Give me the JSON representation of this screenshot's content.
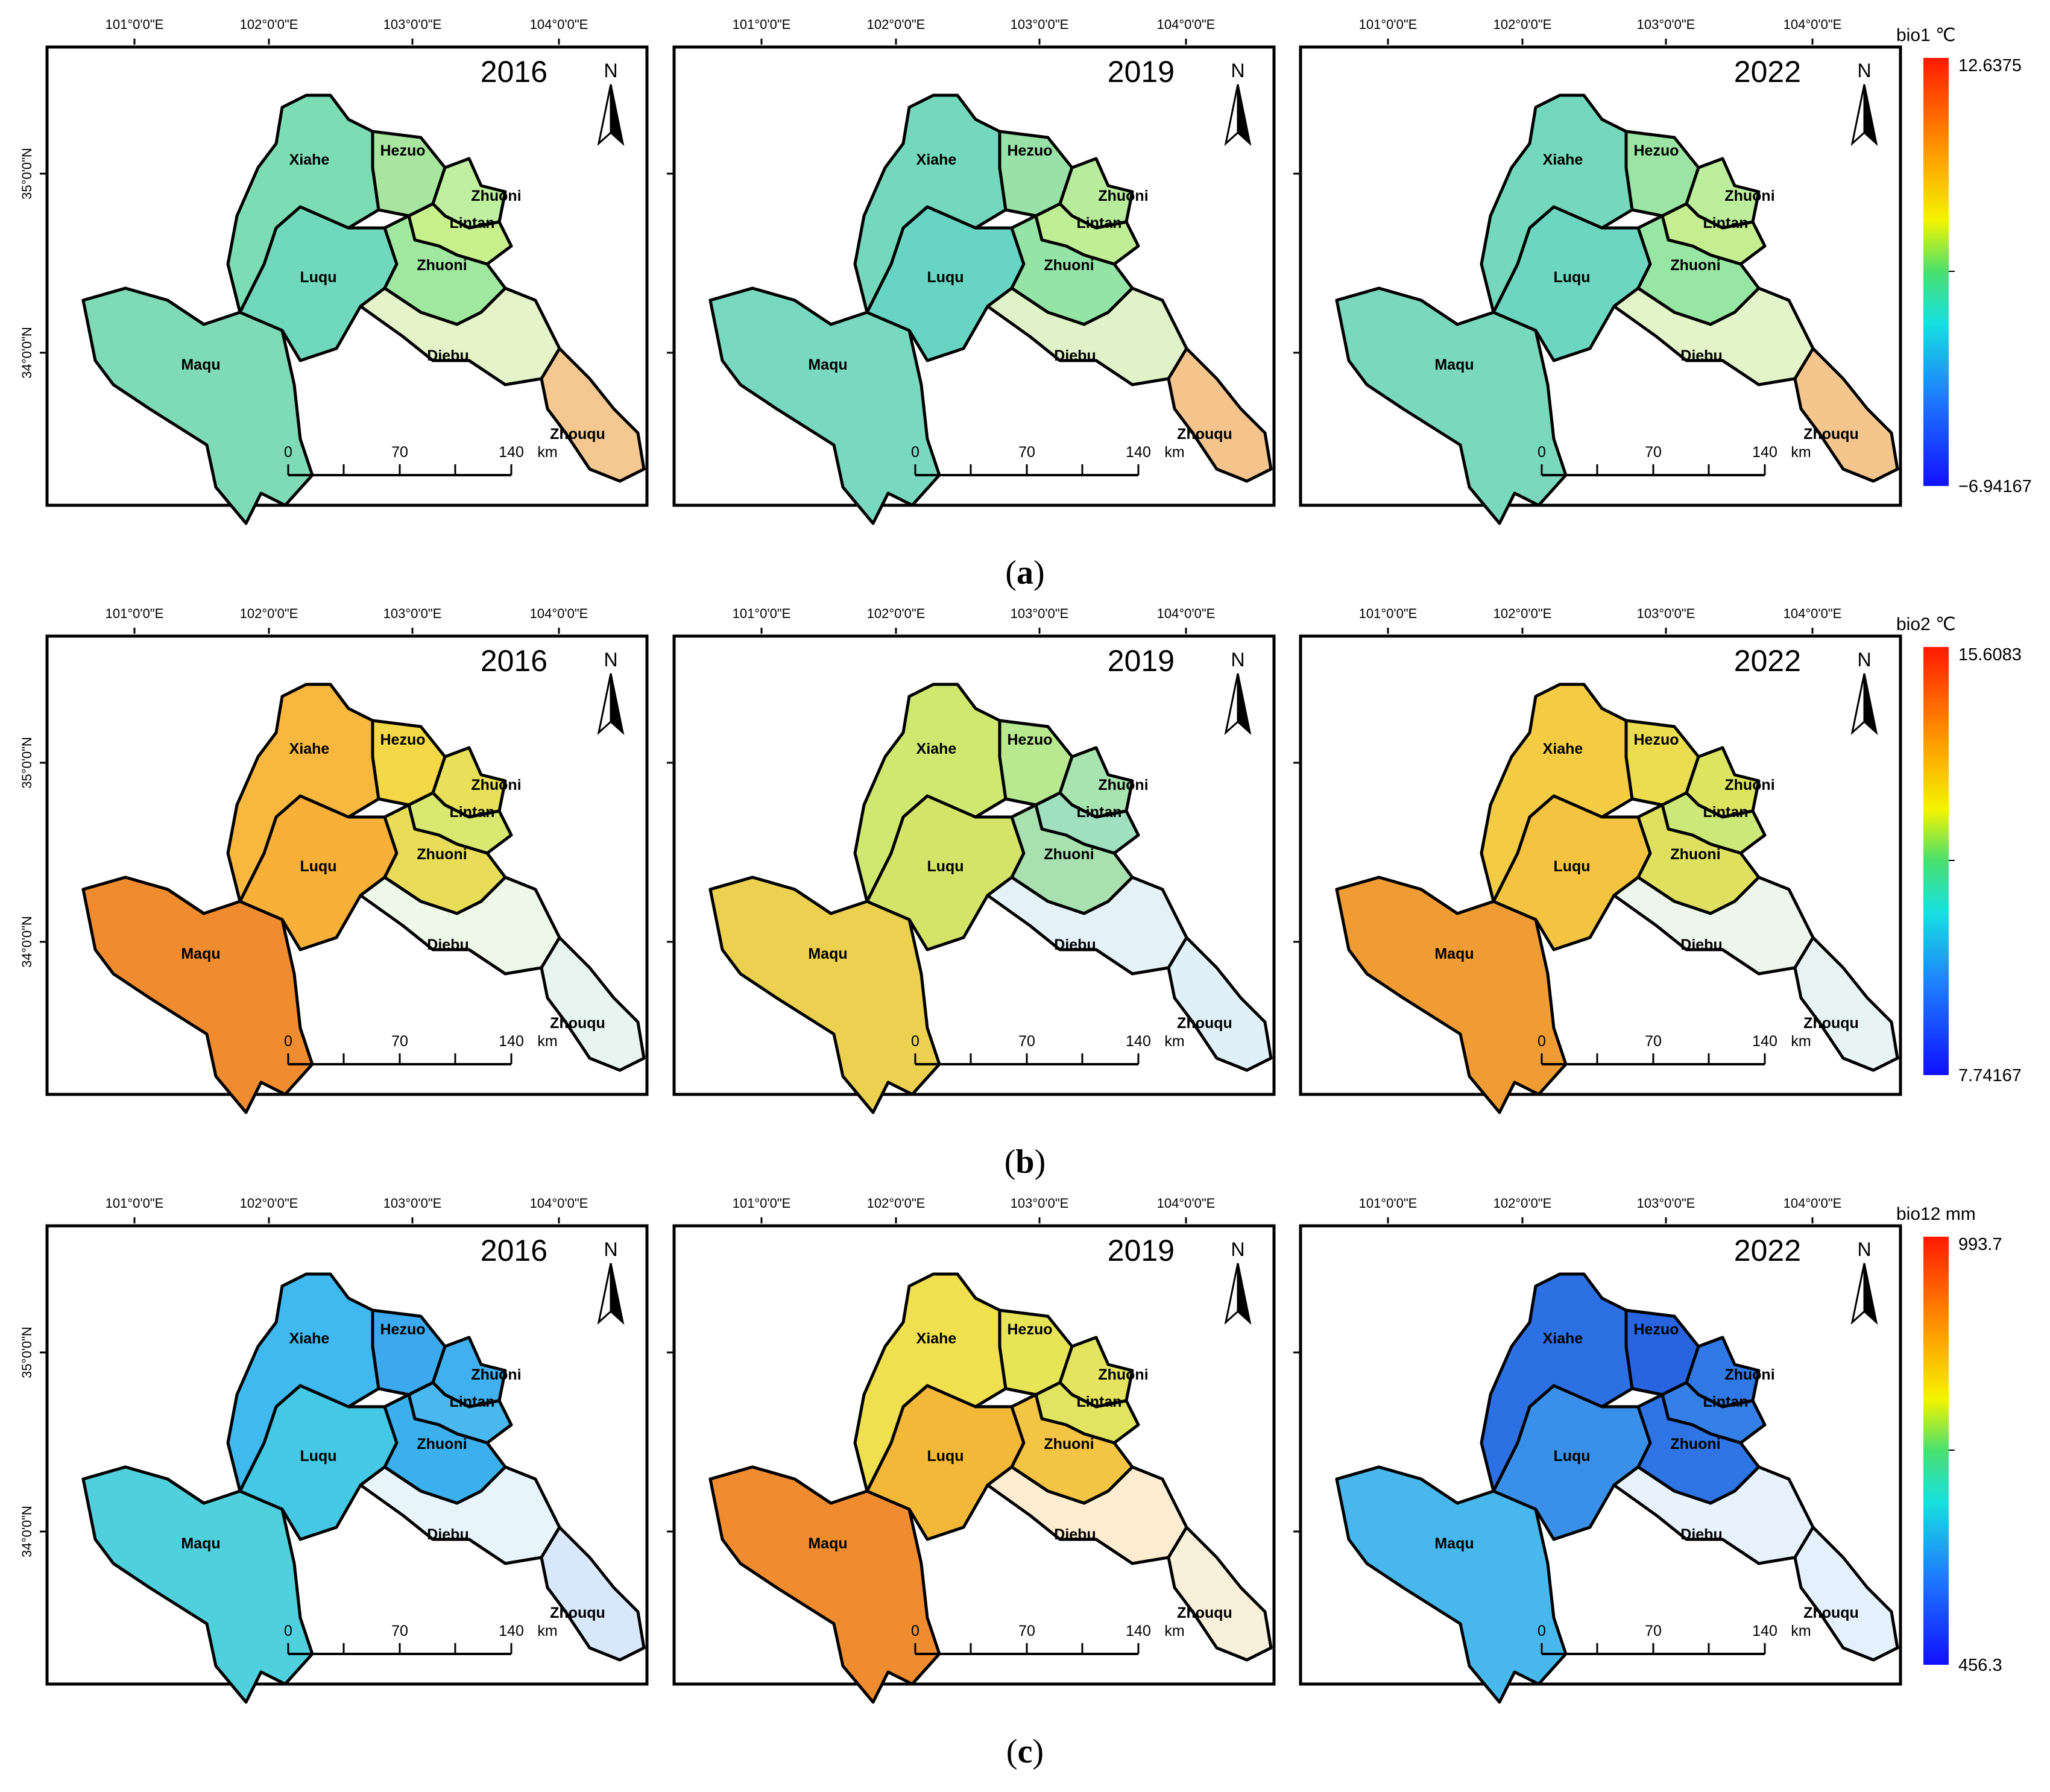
{
  "axes": {
    "x_ticks": [
      "101°0'0\"E",
      "102°0'0\"E",
      "103°0'0\"E",
      "104°0'0\"E"
    ],
    "y_ticks": [
      "35°0'0\"N",
      "34°0'0\"N"
    ]
  },
  "regions": [
    "Xiahe",
    "Hezuo",
    "Zhuoni",
    "Lintan",
    "Luqu",
    "Zhuoni",
    "Maqu",
    "Diebu",
    "Zhouqu"
  ],
  "north_arrow": {
    "label": "N",
    "icon": "north-arrow-icon"
  },
  "scale_bar": {
    "ticks": [
      "0",
      "70",
      "140"
    ],
    "unit": "km"
  },
  "rows": [
    {
      "caption_open": "(",
      "caption_letter": "a",
      "caption_close": ")",
      "variable": "bio1",
      "unit": "℃",
      "legend_max": "12.6375",
      "legend_min": "−6.94167",
      "panels": [
        {
          "year": "2016",
          "colors": {
            "Xiahe": "#7cdcb4",
            "Hezuo": "#a8e6a0",
            "Zhuoni": "#bff0a0",
            "Lintan": "#c8f08c",
            "Luqu": "#70d8bc",
            "Zhuoni2": "#a0e8a0",
            "Maqu": "#7fdab8",
            "MaquWest": "#4aa0e8",
            "Diebu": "#e4f4c8",
            "Zhouqu": "#f4c890"
          }
        },
        {
          "year": "2019",
          "colors": {
            "Xiahe": "#74d8bc",
            "Hezuo": "#98e2a8",
            "Zhuoni": "#b8ec9c",
            "Lintan": "#c0ee94",
            "Luqu": "#68d4c4",
            "Zhuoni2": "#94e4a8",
            "Maqu": "#78d8c0",
            "MaquWest": "#4898e8",
            "Diebu": "#e0f2c8",
            "Zhouqu": "#f4c48c"
          }
        },
        {
          "year": "2022",
          "colors": {
            "Xiahe": "#74d8bc",
            "Hezuo": "#9ce4a4",
            "Zhuoni": "#bcee9c",
            "Lintan": "#c4ee90",
            "Luqu": "#6cd6c0",
            "Zhuoni2": "#98e6a4",
            "Maqu": "#7ad8bc",
            "MaquWest": "#4a9ce8",
            "Diebu": "#e2f4c8",
            "Zhouqu": "#f4c68e"
          }
        }
      ]
    },
    {
      "caption_open": "(",
      "caption_letter": "b",
      "caption_close": ")",
      "variable": "bio2",
      "unit": "℃",
      "legend_max": "15.6083",
      "legend_min": "7.74167",
      "panels": [
        {
          "year": "2016",
          "colors": {
            "Xiahe": "#f8b840",
            "Hezuo": "#f4d848",
            "Zhuoni": "#e8e058",
            "Lintan": "#d8e870",
            "Luqu": "#f8b038",
            "Zhuoni2": "#e8dc58",
            "Maqu": "#f08c30",
            "MaquWest": "#ee7830",
            "Diebu": "#eef8e8",
            "Zhouqu": "#e8f4f0"
          }
        },
        {
          "year": "2019",
          "colors": {
            "Xiahe": "#d0e870",
            "Hezuo": "#b8e890",
            "Zhuoni": "#a8e4b0",
            "Lintan": "#a0e0c0",
            "Luqu": "#d4e468",
            "Zhuoni2": "#a8e0b0",
            "Maqu": "#ecd050",
            "MaquWest": "#f0d050",
            "Diebu": "#e4f2f8",
            "Zhouqu": "#e0f0f8"
          }
        },
        {
          "year": "2022",
          "colors": {
            "Xiahe": "#f4cc44",
            "Hezuo": "#ecdc50",
            "Zhuoni": "#dce460",
            "Lintan": "#cce878",
            "Luqu": "#f4c440",
            "Zhuoni2": "#e0e060",
            "Maqu": "#f09c34",
            "MaquWest": "#ef8a30",
            "Diebu": "#ecf6ec",
            "Zhouqu": "#e8f4f4"
          }
        }
      ]
    },
    {
      "caption_open": "(",
      "caption_letter": "c",
      "caption_close": ")",
      "variable": "bio12",
      "unit": "mm",
      "legend_max": "993.7",
      "legend_min": "456.3",
      "panels": [
        {
          "year": "2016",
          "colors": {
            "Xiahe": "#40b8f0",
            "Hezuo": "#3ca8ee",
            "Zhuoni": "#40b0ee",
            "Lintan": "#48b8ee",
            "Luqu": "#44c8e4",
            "Zhuoni2": "#3cb0ec",
            "Maqu": "#50d0dc",
            "MaquWest": "#54d4d8",
            "Diebu": "#e8f4fc",
            "Zhouqu": "#d8e8fc"
          }
        },
        {
          "year": "2019",
          "colors": {
            "Xiahe": "#f0e050",
            "Hezuo": "#e8e458",
            "Zhuoni": "#e4e460",
            "Lintan": "#e0e460",
            "Luqu": "#f4b838",
            "Zhuoni2": "#f4c444",
            "Maqu": "#f08c30",
            "MaquWest": "#f09434",
            "Diebu": "#fcecd0",
            "Zhouqu": "#f8f0d8"
          }
        },
        {
          "year": "2022",
          "colors": {
            "Xiahe": "#2c70e4",
            "Hezuo": "#2864e0",
            "Zhuoni": "#3078e4",
            "Lintan": "#3480e6",
            "Luqu": "#3a90e8",
            "Zhuoni2": "#2e74e4",
            "Maqu": "#48b8ec",
            "MaquWest": "#48b8ec",
            "Diebu": "#e8f2fc",
            "Zhouqu": "#e4f0fc"
          }
        }
      ]
    }
  ]
}
